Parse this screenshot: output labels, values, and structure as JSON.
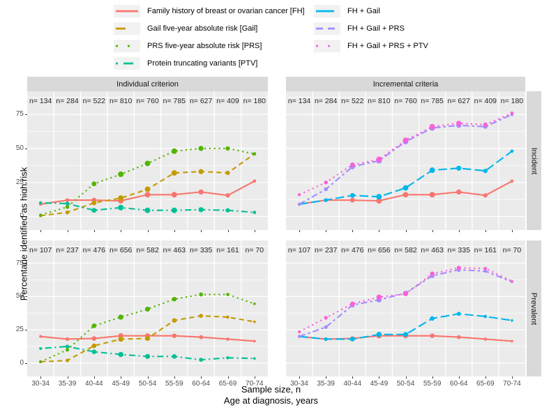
{
  "figure": {
    "background": "#FFFFFF"
  },
  "axes": {
    "y_label": "Percentage identified as high risk",
    "x_label_line1": "Sample size, n",
    "x_label_line2": "Age at diagnosis, years",
    "y_tick_labels": [
      "0",
      "25",
      "50",
      "75"
    ],
    "x_tick_labels": [
      "30-34",
      "35-39",
      "40-44",
      "45-49",
      "50-54",
      "55-59",
      "60-64",
      "65-69",
      "70-74"
    ]
  },
  "colors": {
    "panel_bg": "#EBEBEB",
    "strip_bg": "#D9D9D9",
    "grid": "#FFFFFF",
    "tick_text": "#4D4D4D",
    "n_label_text": "#262626"
  },
  "chart_data": {
    "type": "line",
    "title": "",
    "ylabel": "Percentage identified as high risk",
    "xlabel_line1": "Sample size, n",
    "xlabel_line2": "Age at diagnosis, years",
    "categories": [
      "30-34",
      "35-39",
      "40-44",
      "45-49",
      "50-54",
      "55-59",
      "60-64",
      "65-69",
      "70-74"
    ],
    "y_ticks": [
      0,
      25,
      50,
      75
    ],
    "ylim": [
      -10,
      92
    ],
    "grid": "white major+minor on gray panel",
    "legend_position": "top",
    "facet_cols": [
      "Individual criterion",
      "Incremental criteria"
    ],
    "facet_rows": [
      "Incident",
      "Prevalent"
    ],
    "n_prefix": "n= ",
    "sample_sizes": {
      "Incident": [
        134,
        284,
        522,
        810,
        760,
        785,
        627,
        409,
        180
      ],
      "Prevalent": [
        107,
        237,
        476,
        656,
        582,
        463,
        335,
        161,
        70
      ]
    },
    "series_styles": [
      {
        "label": "Family history of breast or ovarian cancer [FH]",
        "color": "#F8766D",
        "linetype": "solid",
        "legend_col": 0,
        "legend_row": 0
      },
      {
        "label": "Gail five-year absolute risk [Gail]",
        "color": "#C49A00",
        "linetype": "dashed",
        "legend_col": 0,
        "legend_row": 1
      },
      {
        "label": "PRS five-year absolute risk [PRS]",
        "color": "#53B400",
        "linetype": "dotted",
        "legend_col": 0,
        "legend_row": 2
      },
      {
        "label": "Protein truncating variants [PTV]",
        "color": "#00C094",
        "linetype": "dotdash",
        "legend_col": 0,
        "legend_row": 3
      },
      {
        "label": "FH + Gail",
        "color": "#00B6EB",
        "linetype": "longdash",
        "legend_col": 1,
        "legend_row": 0
      },
      {
        "label": "FH + Gail + PRS",
        "color": "#A58AFF",
        "linetype": "twodash",
        "legend_col": 1,
        "legend_row": 1
      },
      {
        "label": "FH + Gail + PRS + PTV",
        "color": "#FB61D7",
        "linetype": "dotted",
        "legend_col": 1,
        "legend_row": 2
      }
    ],
    "panels": [
      {
        "facet_col": "Individual criterion",
        "facet_row": "Incident",
        "n": [
          134,
          284,
          522,
          810,
          760,
          785,
          627,
          409,
          180
        ],
        "series": [
          {
            "name": "Family history of breast or ovarian cancer [FH]",
            "values": [
              9,
              12,
              12,
              11.5,
              16,
              16,
              18,
              15.5,
              26
            ]
          },
          {
            "name": "Gail five-year absolute risk [Gail]",
            "values": [
              0.5,
              3,
              10,
              13.5,
              20,
              32,
              33,
              32,
              46
            ]
          },
          {
            "name": "PRS five-year absolute risk [PRS]",
            "values": [
              1,
              7,
              24,
              31,
              39,
              48,
              50,
              50,
              46
            ]
          },
          {
            "name": "Protein truncating variants [PTV]",
            "values": [
              10,
              9.5,
              4.5,
              6.5,
              4.5,
              4.5,
              5,
              4.5,
              3
            ]
          }
        ]
      },
      {
        "facet_col": "Incremental criteria",
        "facet_row": "Incident",
        "n": [
          134,
          284,
          522,
          810,
          760,
          785,
          627,
          409,
          180
        ],
        "series": [
          {
            "name": "Family history of breast or ovarian cancer [FH]",
            "values": [
              9,
              12,
              12,
              11.5,
              16,
              16,
              18,
              15.5,
              26
            ]
          },
          {
            "name": "FH + Gail",
            "values": [
              9,
              12,
              15.5,
              14.5,
              21,
              34,
              35.5,
              33.5,
              48
            ]
          },
          {
            "name": "FH + Gail + PRS",
            "values": [
              9,
              20,
              36.5,
              41,
              55,
              65,
              67,
              66,
              75
            ]
          },
          {
            "name": "FH + Gail + PRS + PTV",
            "values": [
              16,
              25,
              38,
              42,
              56,
              66,
              68.5,
              67.5,
              76
            ]
          }
        ]
      },
      {
        "facet_col": "Individual criterion",
        "facet_row": "Prevalent",
        "n": [
          107,
          237,
          476,
          656,
          582,
          463,
          335,
          161,
          70
        ],
        "series": [
          {
            "name": "Family history of breast or ovarian cancer [FH]",
            "values": [
              20,
              18,
              18.5,
              20.5,
              20.5,
              20.5,
              19.5,
              18,
              16.5
            ]
          },
          {
            "name": "Gail five-year absolute risk [Gail]",
            "values": [
              1,
              2,
              13,
              18,
              18.5,
              32,
              35.5,
              34.5,
              31
            ]
          },
          {
            "name": "PRS five-year absolute risk [PRS]",
            "values": [
              1,
              10,
              28,
              34.5,
              40.5,
              48,
              51.5,
              51.5,
              44.5
            ]
          },
          {
            "name": "Protein truncating variants [PTV]",
            "values": [
              11,
              12.5,
              8.5,
              6.5,
              5,
              5,
              2.5,
              4,
              3.5
            ]
          }
        ]
      },
      {
        "facet_col": "Incremental criteria",
        "facet_row": "Prevalent",
        "n": [
          107,
          237,
          476,
          656,
          582,
          463,
          335,
          161,
          70
        ],
        "series": [
          {
            "name": "Family history of breast or ovarian cancer [FH]",
            "values": [
              20,
              18,
              18.5,
              20.5,
              20.5,
              20.5,
              19.5,
              18,
              16.5
            ]
          },
          {
            "name": "FH + Gail",
            "values": [
              20,
              18,
              18,
              21.5,
              21.5,
              33.5,
              37,
              35,
              32
            ]
          },
          {
            "name": "FH + Gail + PRS",
            "values": [
              20,
              27,
              43.5,
              47.5,
              52.5,
              65.5,
              70,
              69,
              61
            ]
          },
          {
            "name": "FH + Gail + PRS + PTV",
            "values": [
              23.5,
              34,
              44.5,
              49.5,
              52,
              67,
              71.5,
              71,
              61.5
            ]
          }
        ]
      }
    ]
  }
}
